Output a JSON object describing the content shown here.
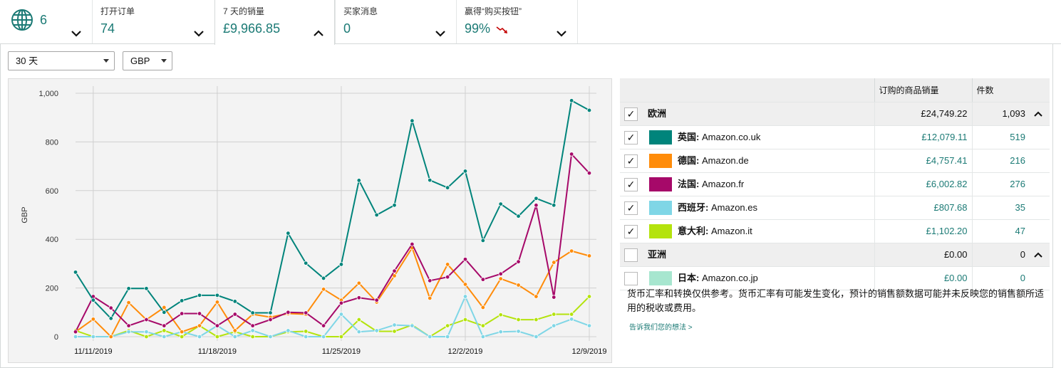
{
  "metrics": {
    "globe_count": "6",
    "tiles": [
      {
        "label": "打开订单",
        "value": "74"
      },
      {
        "label": "7 天的销量",
        "value": "£9,966.85"
      },
      {
        "label": "买家消息",
        "value": "0"
      },
      {
        "label": "赢得“购买按钮”",
        "value": "99%"
      }
    ]
  },
  "filters": {
    "period": "30 天",
    "currency": "GBP"
  },
  "table": {
    "headers": {
      "sales": "订购的商品销量",
      "units": "件数"
    },
    "regions": [
      {
        "name": "欧洲",
        "sales": "£24,749.22",
        "units": "1,093",
        "checked": true,
        "markets": [
          {
            "prefix": "英国:",
            "site": "Amazon.co.uk",
            "sales": "£12,079.11",
            "units": "519",
            "color": "#00847b",
            "checked": true
          },
          {
            "prefix": "德国:",
            "site": "Amazon.de",
            "sales": "£4,757.41",
            "units": "216",
            "color": "#ff8c0a",
            "checked": true
          },
          {
            "prefix": "法国:",
            "site": "Amazon.fr",
            "sales": "£6,002.82",
            "units": "276",
            "color": "#a60969",
            "checked": true
          },
          {
            "prefix": "西班牙:",
            "site": "Amazon.es",
            "sales": "£807.68",
            "units": "35",
            "color": "#7fd6e6",
            "checked": true
          },
          {
            "prefix": "意大利:",
            "site": "Amazon.it",
            "sales": "£1,102.20",
            "units": "47",
            "color": "#b4e30d",
            "checked": true
          }
        ]
      },
      {
        "name": "亚洲",
        "sales": "£0.00",
        "units": "0",
        "checked": false,
        "markets": [
          {
            "prefix": "日本:",
            "site": "Amazon.co.jp",
            "sales": "£0.00",
            "units": "0",
            "color": "#a7e6cf",
            "checked": false
          }
        ]
      }
    ]
  },
  "note": "货币汇率和转换仅供参考。货币汇率有可能发生变化，预计的销售额数据可能并未反映您的销售额所适用的税收或费用。",
  "feedback_link": "告诉我们您的想法 >",
  "chart_data": {
    "type": "line",
    "ylabel": "GBP",
    "ylim": [
      0,
      1000
    ],
    "yticks": [
      "0",
      "200",
      "400",
      "600",
      "800",
      "1,000"
    ],
    "x_tick_labels": [
      "11/11/2019",
      "11/18/2019",
      "11/25/2019",
      "12/2/2019",
      "12/9/2019"
    ],
    "x": [
      "11/10",
      "11/11",
      "11/12",
      "11/13",
      "11/14",
      "11/15",
      "11/16",
      "11/17",
      "11/18",
      "11/19",
      "11/20",
      "11/21",
      "11/22",
      "11/23",
      "11/24",
      "11/25",
      "11/26",
      "11/27",
      "11/28",
      "11/29",
      "11/30",
      "12/1",
      "12/2",
      "12/3",
      "12/4",
      "12/5",
      "12/6",
      "12/7",
      "12/8",
      "12/9"
    ],
    "series": [
      {
        "name": "英国: Amazon.co.uk",
        "color": "#00847b",
        "values": [
          265,
          150,
          75,
          198,
          198,
          100,
          148,
          170,
          170,
          145,
          98,
          98,
          425,
          302,
          240,
          297,
          642,
          500,
          540,
          887,
          643,
          612,
          680,
          395,
          545,
          495,
          568,
          540,
          970,
          930
        ]
      },
      {
        "name": "德国: Amazon.de",
        "color": "#ff8c0a",
        "values": [
          20,
          72,
          0,
          140,
          70,
          120,
          20,
          45,
          142,
          25,
          92,
          80,
          95,
          92,
          195,
          150,
          220,
          142,
          250,
          365,
          158,
          297,
          215,
          120,
          238,
          212,
          165,
          305,
          352,
          332
        ]
      },
      {
        "name": "法国: Amazon.fr",
        "color": "#a60969",
        "values": [
          20,
          165,
          118,
          45,
          70,
          45,
          95,
          95,
          45,
          92,
          45,
          70,
          100,
          98,
          45,
          138,
          160,
          150,
          270,
          380,
          230,
          245,
          318,
          235,
          258,
          308,
          540,
          162,
          750,
          672
        ]
      },
      {
        "name": "西班牙: Amazon.es",
        "color": "#7fd6e6",
        "values": [
          0,
          0,
          0,
          20,
          20,
          0,
          20,
          0,
          45,
          0,
          25,
          0,
          25,
          0,
          0,
          92,
          20,
          25,
          48,
          45,
          0,
          0,
          165,
          0,
          20,
          22,
          0,
          45,
          72,
          45
        ]
      },
      {
        "name": "意大利: Amazon.it",
        "color": "#b4e30d",
        "values": [
          25,
          0,
          0,
          25,
          0,
          25,
          0,
          45,
          0,
          20,
          0,
          0,
          20,
          22,
          0,
          0,
          70,
          22,
          22,
          48,
          0,
          45,
          70,
          45,
          90,
          70,
          70,
          92,
          92,
          165
        ]
      }
    ]
  }
}
